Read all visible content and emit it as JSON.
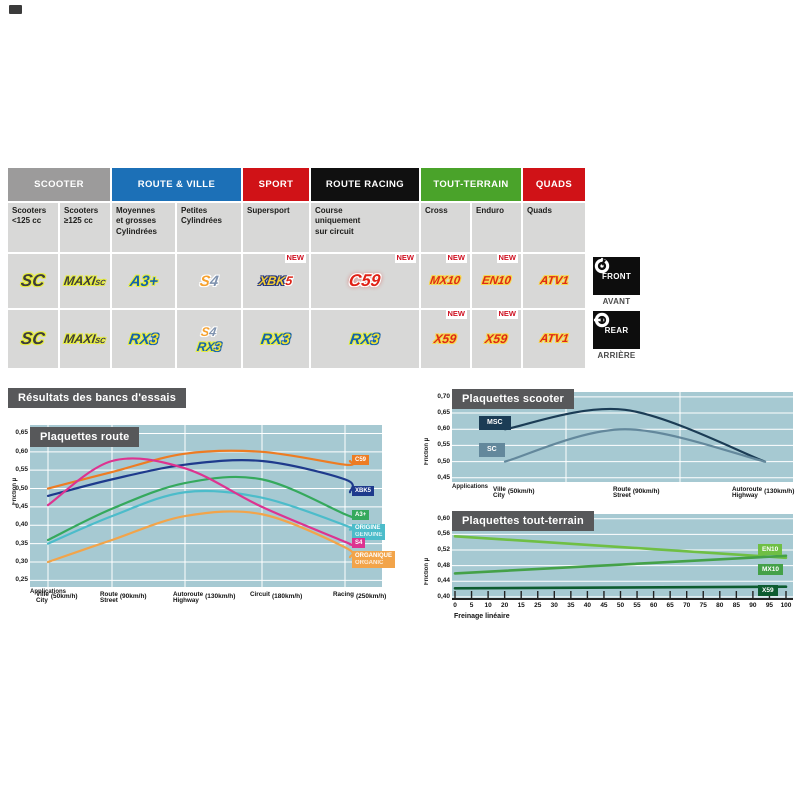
{
  "table": {
    "header_groups": [
      {
        "label": "SCOOTER",
        "color": "#9c9b9b",
        "span": 2
      },
      {
        "label": "ROUTE & VILLE",
        "color": "#1c70b7",
        "span": 2
      },
      {
        "label": "SPORT",
        "color": "#d01217",
        "span": 1
      },
      {
        "label": "ROUTE RACING",
        "color": "#101010",
        "span": 1
      },
      {
        "label": "TOUT-TERRAIN",
        "color": "#4aa32a",
        "span": 2
      },
      {
        "label": "QUADS",
        "color": "#d01217",
        "span": 1
      }
    ],
    "sub_labels": [
      "Scooters\n<125 cc",
      "Scooters\n≥125 cc",
      "Moyennes\net grosses\nCylindrées",
      "Petites\nCylindrées",
      "Supersport",
      "Course\nuniquement\nsur circuit",
      "Cross",
      "Enduro",
      "Quads"
    ],
    "new_badge": "NEW",
    "front_row": [
      {
        "size": "xl",
        "lines": [
          [
            {
              "t": "SC",
              "c": "dark"
            }
          ]
        ]
      },
      {
        "size": "md",
        "lines": [
          [
            {
              "t": "MAXI",
              "c": "dark"
            },
            {
              "t": "SC",
              "c": "dark",
              "small": true
            }
          ]
        ]
      },
      {
        "size": "lg",
        "lines": [
          [
            {
              "t": "A3+",
              "c": "blue"
            }
          ]
        ]
      },
      {
        "size": "lg",
        "lines": [
          [
            {
              "t": "S",
              "c": "orange"
            },
            {
              "t": "4",
              "c": "silver"
            }
          ]
        ]
      },
      {
        "size": "md",
        "new": true,
        "lines": [
          [
            {
              "t": "XBK",
              "c": "gold"
            },
            {
              "t": "5",
              "c": "red"
            }
          ]
        ]
      },
      {
        "size": "xl",
        "new": true,
        "lines": [
          [
            {
              "t": "C59",
              "c": "redwhite"
            }
          ]
        ]
      },
      {
        "size": "sm",
        "new": true,
        "lines": [
          [
            {
              "t": "MX10",
              "c": "redyellow"
            }
          ]
        ]
      },
      {
        "size": "sm",
        "new": true,
        "lines": [
          [
            {
              "t": "EN10",
              "c": "redyellow"
            }
          ]
        ]
      },
      {
        "size": "sm",
        "lines": [
          [
            {
              "t": "ATV1",
              "c": "redyellow"
            }
          ]
        ]
      }
    ],
    "rear_row": [
      {
        "size": "xl",
        "lines": [
          [
            {
              "t": "SC",
              "c": "dark"
            }
          ]
        ]
      },
      {
        "size": "md",
        "lines": [
          [
            {
              "t": "MAXI",
              "c": "dark"
            },
            {
              "t": "SC",
              "c": "dark",
              "small": true
            }
          ]
        ]
      },
      {
        "size": "lg",
        "lines": [
          [
            {
              "t": "RX",
              "c": "blue"
            },
            {
              "t": "3",
              "c": "yellow"
            }
          ]
        ]
      },
      {
        "size": "md",
        "lines": [
          [
            {
              "t": "S",
              "c": "orange"
            },
            {
              "t": "4",
              "c": "silver"
            }
          ],
          [
            {
              "t": "RX",
              "c": "blue"
            },
            {
              "t": "3",
              "c": "yellow"
            }
          ]
        ]
      },
      {
        "size": "lg",
        "lines": [
          [
            {
              "t": "RX",
              "c": "blue"
            },
            {
              "t": "3",
              "c": "yellow"
            }
          ]
        ]
      },
      {
        "size": "lg",
        "lines": [
          [
            {
              "t": "RX",
              "c": "blue"
            },
            {
              "t": "3",
              "c": "yellow"
            }
          ]
        ]
      },
      {
        "size": "md",
        "new": true,
        "lines": [
          [
            {
              "t": "X59",
              "c": "redyellow"
            }
          ]
        ]
      },
      {
        "size": "md",
        "new": true,
        "lines": [
          [
            {
              "t": "X59",
              "c": "redyellow"
            }
          ]
        ]
      },
      {
        "size": "sm",
        "lines": [
          [
            {
              "t": "ATV1",
              "c": "redyellow"
            }
          ]
        ]
      }
    ],
    "front_label": {
      "title": "FRONT",
      "subtitle": "AVANT"
    },
    "rear_label": {
      "title": "REAR",
      "subtitle": "ARRIÈRE"
    }
  },
  "section_title": "Résultats des bancs d'essais",
  "chart_data": [
    {
      "id": "route",
      "type": "line",
      "title": "Plaquettes route",
      "ylabel": "Friction µ",
      "xlabel": "Applications",
      "grid": true,
      "legend_position": "right",
      "ylim": [
        0.25,
        0.65
      ],
      "ytick_labels": [
        "0,65",
        "0,60",
        "0,55",
        "0,50",
        "0,45",
        "0,40",
        "0,35",
        "0,30",
        "0,25"
      ],
      "ytick_values": [
        0.65,
        0.6,
        0.55,
        0.5,
        0.45,
        0.4,
        0.35,
        0.3,
        0.25
      ],
      "categories": [
        {
          "name": "Ville",
          "name2": "City",
          "speed": "(50km/h)"
        },
        {
          "name": "Route",
          "name2": "Street",
          "speed": "(90km/h)"
        },
        {
          "name": "Autoroute",
          "name2": "Highway",
          "speed": "(130km/h)"
        },
        {
          "name": "Circuit",
          "speed": "(180km/h)"
        },
        {
          "name": "Racing",
          "speed": "(250km/h)"
        }
      ],
      "series": [
        {
          "name": "ORGANIQUE/ORGANIC",
          "color": "#f2a44a",
          "values": [
            0.3,
            0.36,
            0.425,
            0.43,
            0.34
          ],
          "chip": [
            "ORGANIQUE",
            "ORGANIC"
          ],
          "chip_v": 0.313
        },
        {
          "name": "ORIGINE/GENUINE",
          "color": "#4cbcca",
          "values": [
            0.35,
            0.425,
            0.49,
            0.475,
            0.4
          ],
          "chip": [
            "ORIGINE",
            "GENUINE"
          ],
          "chip_v": 0.388
        },
        {
          "name": "A3+",
          "color": "#35a95d",
          "values": [
            0.36,
            0.445,
            0.515,
            0.525,
            0.43
          ],
          "chip": [
            "A3+"
          ],
          "chip_v": 0.425
        },
        {
          "name": "XBK5",
          "color": "#1e3a8c",
          "values": [
            0.48,
            0.525,
            0.565,
            0.575,
            0.525
          ],
          "chip": [
            "XBK5"
          ],
          "chip_v": 0.49
        },
        {
          "name": "C59",
          "color": "#ed7c23",
          "values": [
            0.5,
            0.545,
            0.595,
            0.6,
            0.565
          ],
          "chip": [
            "C59"
          ],
          "chip_v": 0.575
        },
        {
          "name": "S4",
          "color": "#dd3390",
          "values": [
            0.455,
            0.575,
            0.555,
            0.45,
            0.355
          ],
          "chip": [
            "S4"
          ],
          "chip_v": 0.348
        }
      ]
    },
    {
      "id": "scooter",
      "type": "line",
      "title": "Plaquettes scooter",
      "ylabel": "Friction µ",
      "xlabel": "Applications",
      "grid": true,
      "legend_position": "left",
      "ylim": [
        0.45,
        0.7
      ],
      "ytick_labels": [
        "0,70",
        "0,65",
        "0,60",
        "0,55",
        "0,50",
        "0,45"
      ],
      "ytick_values": [
        0.7,
        0.65,
        0.6,
        0.55,
        0.5,
        0.45
      ],
      "categories": [
        {
          "name": "Ville",
          "name2": "City",
          "speed": "(50km/h)"
        },
        {
          "name": "Route",
          "name2": "Street",
          "speed": "(90km/h)"
        },
        {
          "name": "Autoroute",
          "name2": "Highway",
          "speed": "(130km/h)"
        }
      ],
      "series": [
        {
          "name": "MSC",
          "color": "#1b3c55",
          "values": [
            0.6,
            0.66,
            0.5
          ],
          "chip": [
            "MSC"
          ],
          "chip_v": 0.615
        },
        {
          "name": "SC",
          "color": "#63889c",
          "values": [
            0.5,
            0.6,
            0.5
          ],
          "chip": [
            "SC"
          ],
          "chip_v": 0.533
        }
      ]
    },
    {
      "id": "tt",
      "type": "line",
      "title": "Plaquettes tout-terrain",
      "ylabel": "Friction µ",
      "xlabel": "Freinage linéaire",
      "grid": true,
      "legend_position": "right",
      "ylim": [
        0.4,
        0.6
      ],
      "xlim": [
        0,
        100
      ],
      "ytick_labels": [
        "0,60",
        "0,56",
        "0,52",
        "0,48",
        "0,44",
        "0,40"
      ],
      "ytick_values": [
        0.6,
        0.56,
        0.52,
        0.48,
        0.44,
        0.4
      ],
      "xtick_labels": [
        "0",
        "5",
        "10",
        "20",
        "15",
        "25",
        "30",
        "35",
        "40",
        "45",
        "50",
        "55",
        "60",
        "65",
        "70",
        "75",
        "80",
        "85",
        "90",
        "95",
        "100"
      ],
      "series": [
        {
          "name": "EN10",
          "color": "#6fbf44",
          "x": [
            0,
            100
          ],
          "values": [
            0.555,
            0.5
          ],
          "chip": [
            "EN10"
          ],
          "chip_v": 0.521
        },
        {
          "name": "MX10",
          "color": "#44a148",
          "x": [
            0,
            100
          ],
          "values": [
            0.46,
            0.505
          ],
          "chip": [
            "MX10"
          ],
          "chip_v": 0.469
        },
        {
          "name": "X59",
          "color": "#0d5c30",
          "x": [
            0,
            100
          ],
          "values": [
            0.422,
            0.426
          ],
          "chip": [
            "X59"
          ],
          "chip_v": 0.416
        }
      ]
    }
  ]
}
